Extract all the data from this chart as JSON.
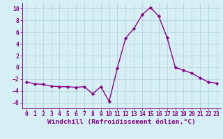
{
  "x": [
    0,
    1,
    2,
    3,
    4,
    5,
    6,
    7,
    8,
    9,
    10,
    11,
    12,
    13,
    14,
    15,
    16,
    17,
    18,
    19,
    20,
    21,
    22,
    23
  ],
  "y": [
    -2.5,
    -2.8,
    -2.9,
    -3.2,
    -3.3,
    -3.3,
    -3.4,
    -3.3,
    -4.5,
    -3.3,
    -5.8,
    -0.1,
    5.0,
    6.6,
    9.0,
    10.2,
    8.7,
    5.1,
    0.0,
    -0.5,
    -1.0,
    -1.8,
    -2.5,
    -2.7
  ],
  "line_color": "#8b008b",
  "marker": "D",
  "marker_size": 2.2,
  "bg_color": "#d6eff5",
  "grid_color": "#b0d0d8",
  "xlabel": "Windchill (Refroidissement éolien,°C)",
  "ylim": [
    -7,
    11
  ],
  "xlim": [
    -0.5,
    23.5
  ],
  "yticks": [
    -6,
    -4,
    -2,
    0,
    2,
    4,
    6,
    8,
    10
  ],
  "xticks": [
    0,
    1,
    2,
    3,
    4,
    5,
    6,
    7,
    8,
    9,
    10,
    11,
    12,
    13,
    14,
    15,
    16,
    17,
    18,
    19,
    20,
    21,
    22,
    23
  ],
  "tick_label_fontsize": 5.8,
  "xlabel_fontsize": 6.8,
  "axis_color": "#800080",
  "linewidth": 1.0
}
